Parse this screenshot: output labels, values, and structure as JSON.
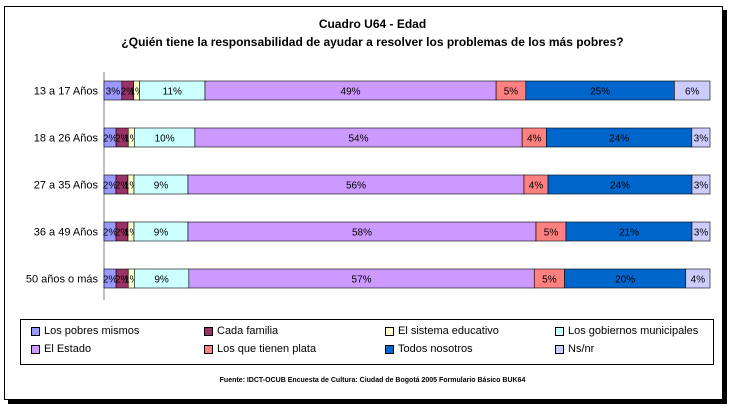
{
  "chart_data": {
    "type": "bar",
    "orientation": "horizontal",
    "stacked": "percent",
    "title": "Cuadro U64 - Edad",
    "subtitle": "¿Quién tiene la responsabilidad de ayudar a resolver los problemas de los más pobres?",
    "categories": [
      "13 a 17 Años",
      "18 a 26 Años",
      "27 a 35 Años",
      "36 a 49 Años",
      "50 años o más"
    ],
    "series": [
      {
        "name": "Los pobres mismos",
        "color": "#9999ff",
        "values": [
          3,
          2,
          2,
          2,
          2
        ],
        "labels": [
          "3%",
          "2%",
          "2%",
          "2%",
          "2%"
        ]
      },
      {
        "name": "Cada familia",
        "color": "#993366",
        "values": [
          2,
          2,
          2,
          2,
          2
        ],
        "labels": [
          "2%",
          "2%",
          "2%",
          "2%",
          "2%"
        ]
      },
      {
        "name": "El sistema educativo",
        "color": "#ffffcc",
        "values": [
          1,
          1,
          1,
          1,
          1
        ],
        "labels": [
          "1%",
          "1%",
          "1%",
          "1%",
          "1%"
        ]
      },
      {
        "name": "Los gobiernos municipales",
        "color": "#ccffff",
        "values": [
          11,
          10,
          9,
          9,
          9
        ],
        "labels": [
          "11%",
          "10%",
          "9%",
          "9%",
          "9%"
        ]
      },
      {
        "name": "El Estado",
        "color": "#cc99ff",
        "values": [
          49,
          54,
          56,
          58,
          57
        ],
        "labels": [
          "49%",
          "54%",
          "56%",
          "58%",
          "57%"
        ]
      },
      {
        "name": "Los que tienen plata",
        "color": "#ff8080",
        "values": [
          5,
          4,
          4,
          5,
          5
        ],
        "labels": [
          "5%",
          "4%",
          "4%",
          "5%",
          "5%"
        ]
      },
      {
        "name": "Todos nosotros",
        "color": "#0066cc",
        "values": [
          25,
          24,
          24,
          21,
          20
        ],
        "labels": [
          "25%",
          "24%",
          "24%",
          "21%",
          "20%"
        ]
      },
      {
        "name": "Ns/nr",
        "color": "#ccccff",
        "values": [
          6,
          3,
          3,
          3,
          4
        ],
        "labels": [
          "6%",
          "3%",
          "3%",
          "3%",
          "4%"
        ]
      }
    ],
    "grid": false,
    "legend": "bottom",
    "source": "Fuente: IDCT-OCUB Encuesta de Cultura: Ciudad de Bogotá 2005 Formulario Básico BUK64"
  }
}
